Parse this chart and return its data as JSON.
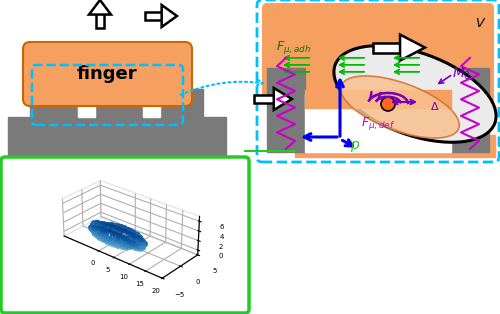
{
  "fig_width": 5.0,
  "fig_height": 3.14,
  "dpi": 100,
  "bg_color": "#ffffff",
  "gray_color": "#7a7a7a",
  "orange_color": "#F5A060",
  "orange_light": "#F8C090",
  "cyan_border": "#00BFFF",
  "green_border": "#22CC22",
  "magenta_color": "#CC00CC",
  "green_arrow_color": "#00BB00",
  "purple_color": "#7700BB",
  "blue_color": "#0000EE",
  "navy_color": "#000099"
}
